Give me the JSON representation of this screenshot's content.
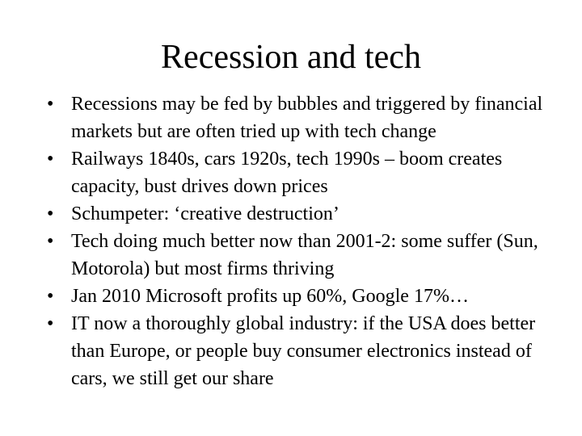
{
  "slide": {
    "title": "Recession and tech",
    "bullet_glyph": "•",
    "bullets": [
      "Recessions may be fed by bubbles and triggered by financial markets but are often tried up with tech change",
      "Railways 1840s, cars 1920s, tech 1990s – boom creates capacity, bust drives down prices",
      "Schumpeter: ‘creative destruction’",
      "Tech doing much better now than 2001-2: some suffer (Sun, Motorola) but most firms thriving",
      "Jan 2010 Microsoft profits up 60%, Google 17%…",
      "IT now a thoroughly global industry: if the USA does better than Europe, or people buy consumer electronics instead of cars, we still get our share"
    ]
  }
}
